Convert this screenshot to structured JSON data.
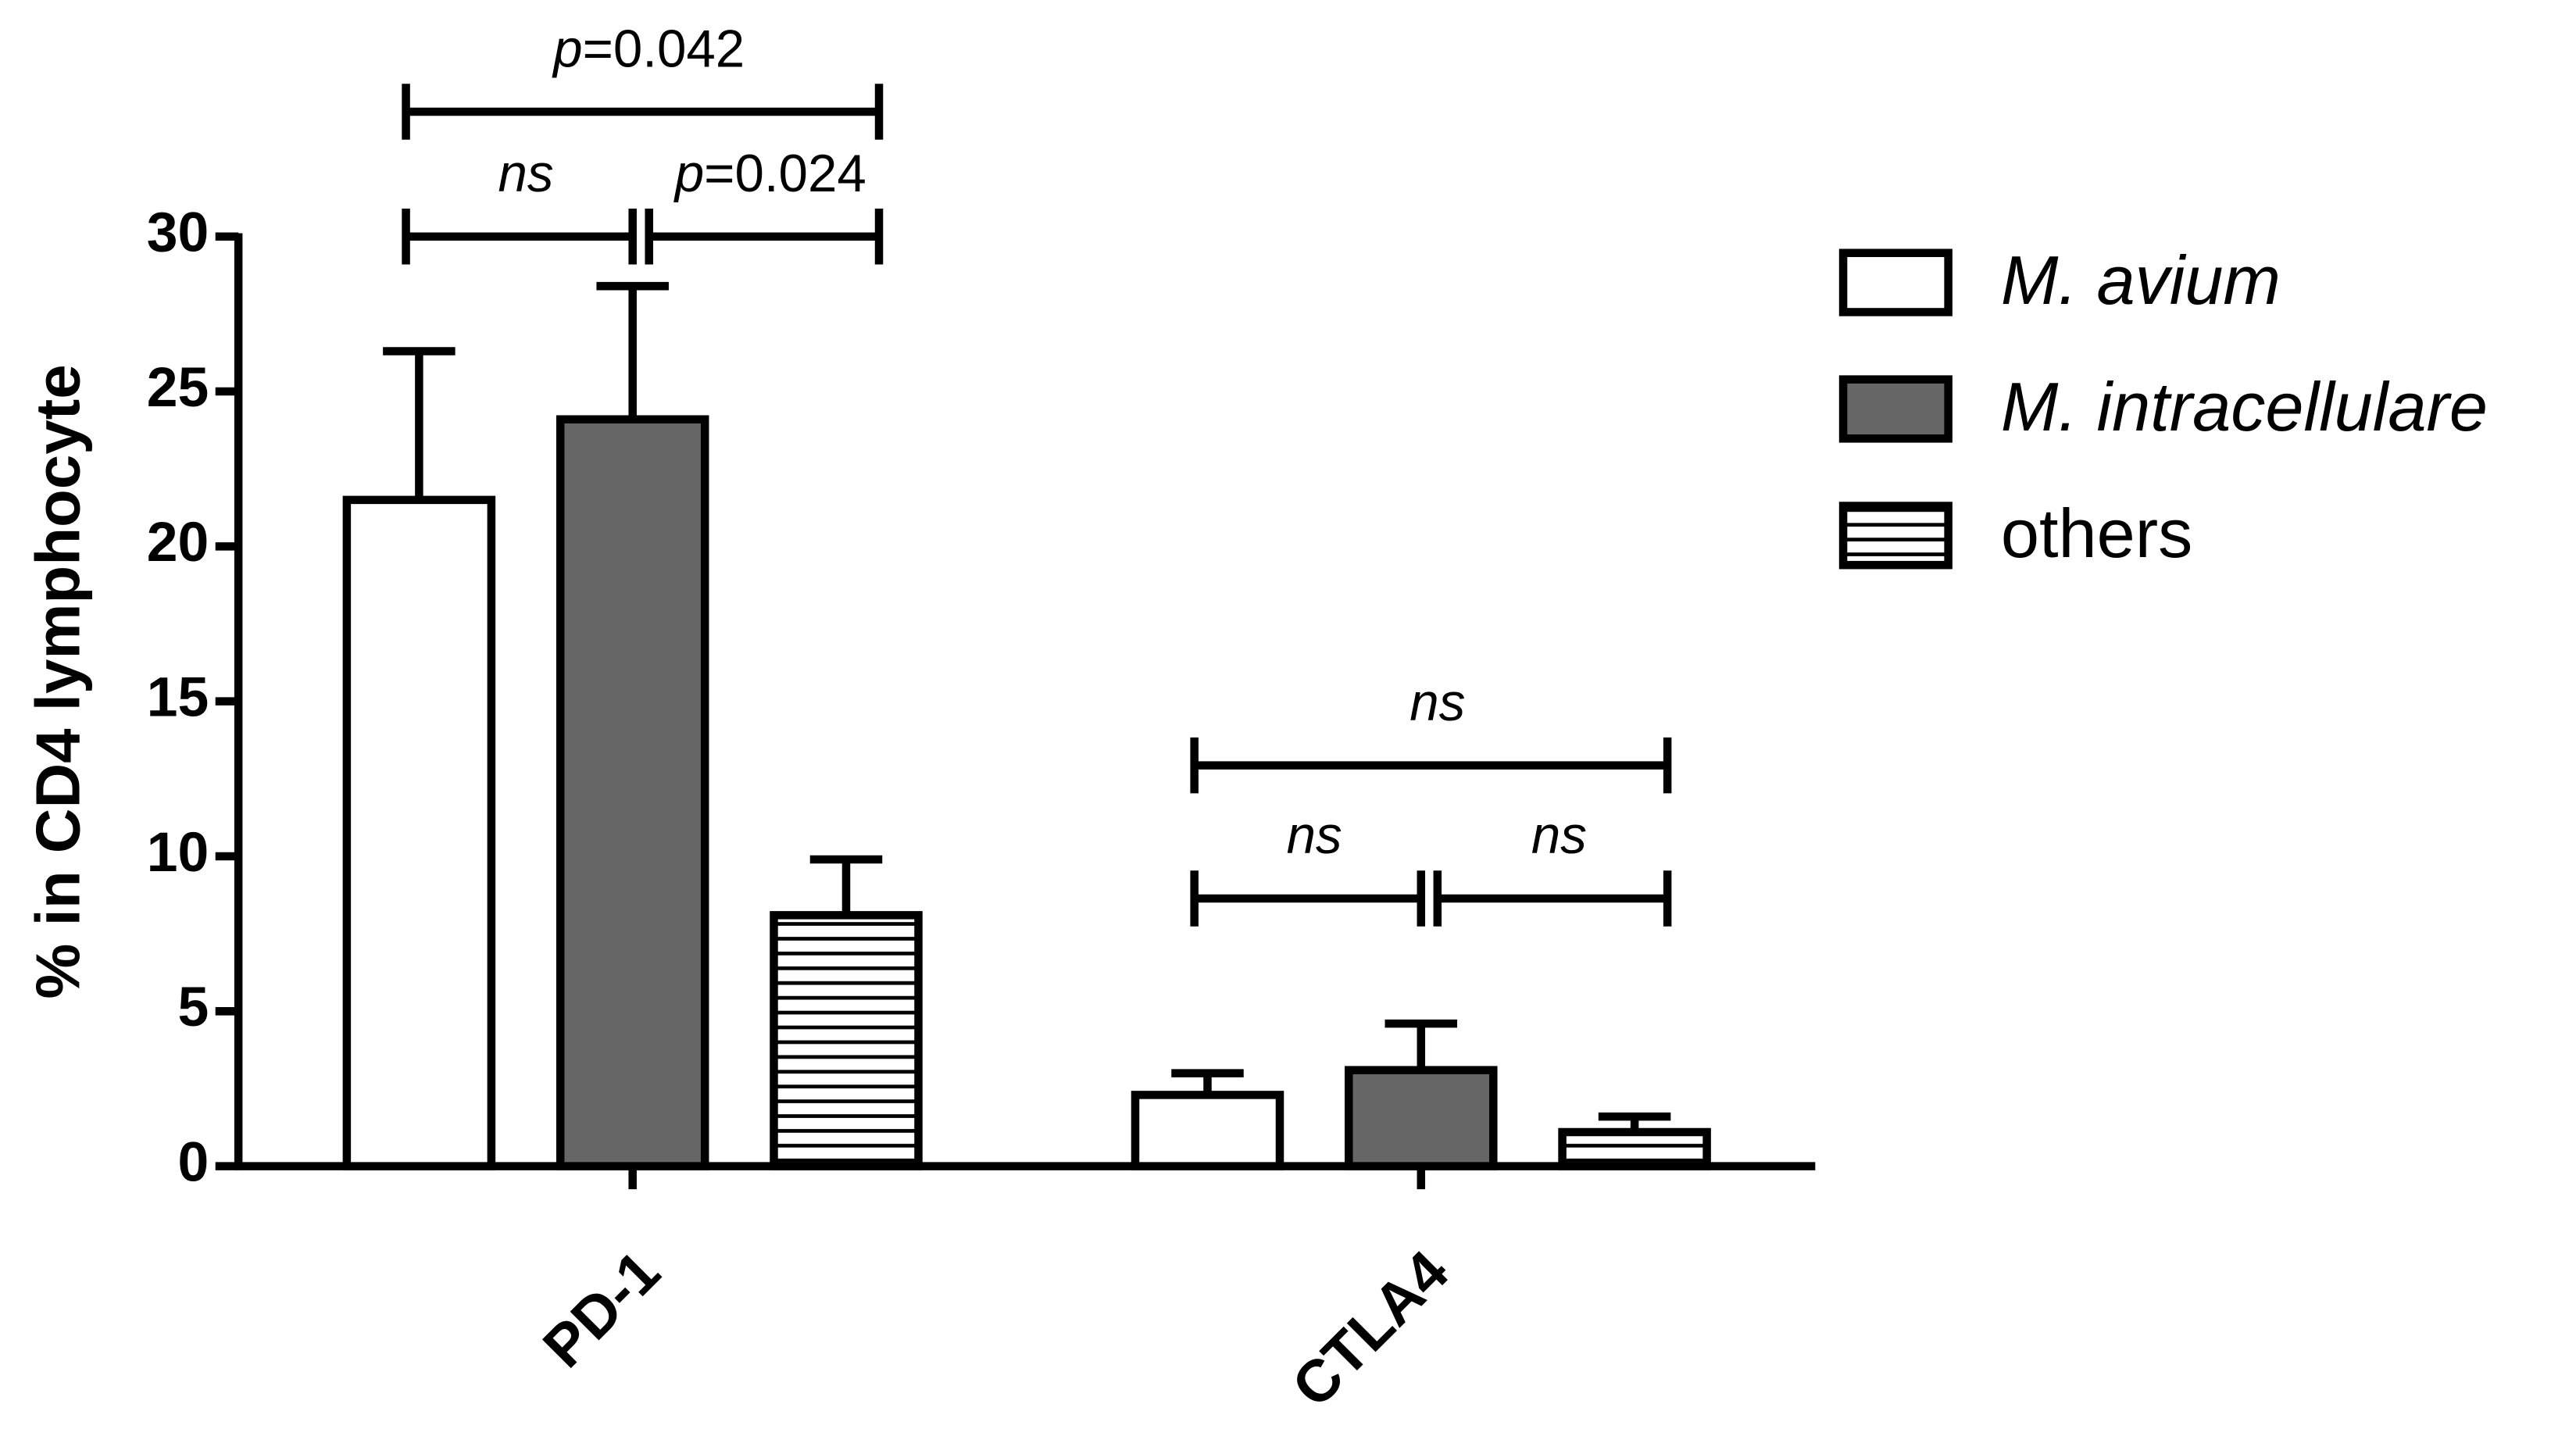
{
  "chart_data": {
    "type": "bar",
    "y_label": "% in CD4 lymphocyte",
    "categories": [
      "PD-1",
      "CTLA4"
    ],
    "series": [
      {
        "name": "M. avium",
        "color": "#ffffff",
        "values": [
          21.5,
          2.3
        ],
        "errors": [
          4.8,
          0.7
        ]
      },
      {
        "name": "M. intracellulare",
        "color": "#666666",
        "values": [
          24.1,
          3.1
        ],
        "errors": [
          4.3,
          1.5
        ]
      },
      {
        "name": "others",
        "color": "striped",
        "values": [
          8.1,
          1.1
        ],
        "errors": [
          1.8,
          0.5
        ]
      }
    ],
    "comparisons": [
      {
        "category": "PD-1",
        "pair": [
          "M. avium",
          "M. intracellulare"
        ],
        "label": "ns"
      },
      {
        "category": "PD-1",
        "pair": [
          "M. intracellulare",
          "others"
        ],
        "label": "p=0.024"
      },
      {
        "category": "PD-1",
        "pair": [
          "M. avium",
          "others"
        ],
        "label": "p=0.042"
      },
      {
        "category": "CTLA4",
        "pair": [
          "M. avium",
          "M. intracellulare"
        ],
        "label": "ns"
      },
      {
        "category": "CTLA4",
        "pair": [
          "M. intracellulare",
          "others"
        ],
        "label": "ns"
      },
      {
        "category": "CTLA4",
        "pair": [
          "M. avium",
          "others"
        ],
        "label": "ns"
      }
    ],
    "ylim": [
      0,
      30
    ],
    "yticks": [
      0,
      5,
      10,
      15,
      20,
      25,
      30
    ],
    "grid": false,
    "legend": "right"
  }
}
